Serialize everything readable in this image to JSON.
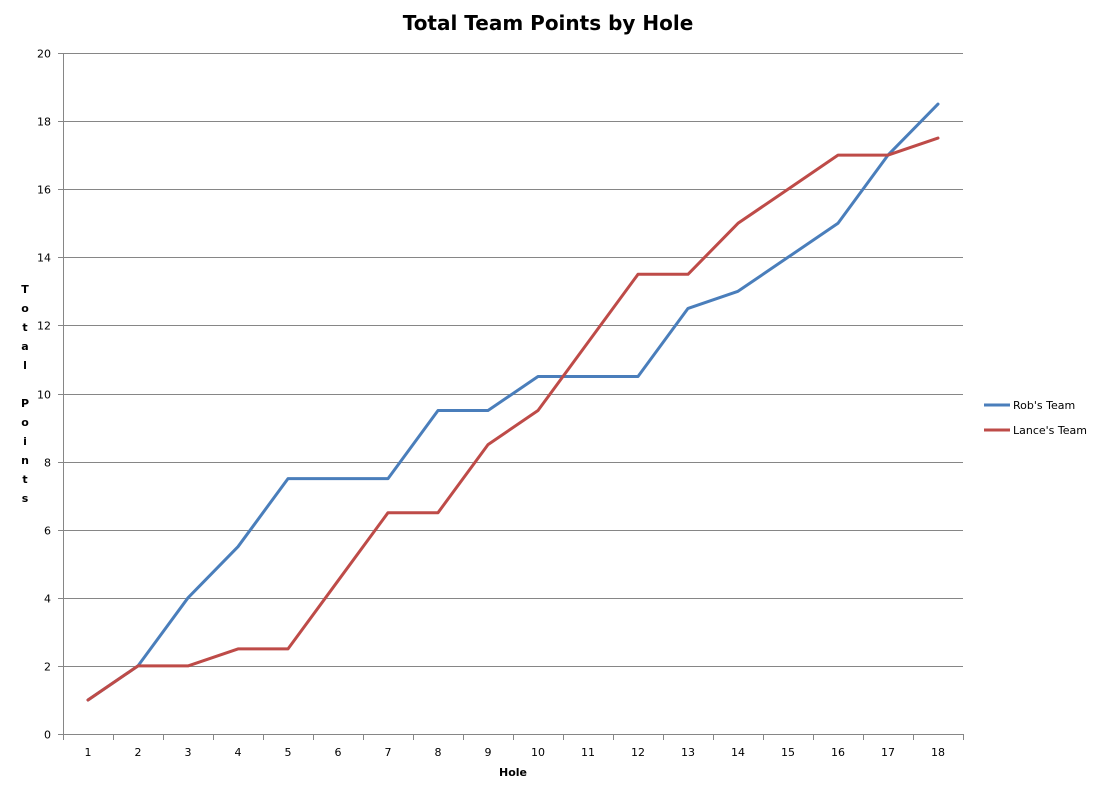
{
  "chart_data": {
    "type": "line",
    "title": "Total Team Points by Hole",
    "xlabel": "Hole",
    "ylabel": "Total Points",
    "categories": [
      "1",
      "2",
      "3",
      "4",
      "5",
      "6",
      "7",
      "8",
      "9",
      "10",
      "11",
      "12",
      "13",
      "14",
      "15",
      "16",
      "17",
      "18"
    ],
    "ylim": [
      0,
      20
    ],
    "yticks": [
      "0",
      "2",
      "4",
      "6",
      "8",
      "10",
      "12",
      "14",
      "16",
      "18",
      "20"
    ],
    "grid": true,
    "legend_position": "right",
    "series": [
      {
        "name": "Rob's Team",
        "color": "#4a7ebb",
        "values": [
          1,
          2,
          4,
          5.5,
          7.5,
          7.5,
          7.5,
          9.5,
          9.5,
          10.5,
          10.5,
          10.5,
          12.5,
          13,
          14,
          15,
          17,
          18.5
        ]
      },
      {
        "name": "Lance's Team",
        "color": "#be4b48",
        "values": [
          1,
          2,
          2,
          2.5,
          2.5,
          4.5,
          6.5,
          6.5,
          8.5,
          9.5,
          11.5,
          13.5,
          13.5,
          15,
          16,
          17,
          17,
          17.5
        ]
      }
    ]
  }
}
